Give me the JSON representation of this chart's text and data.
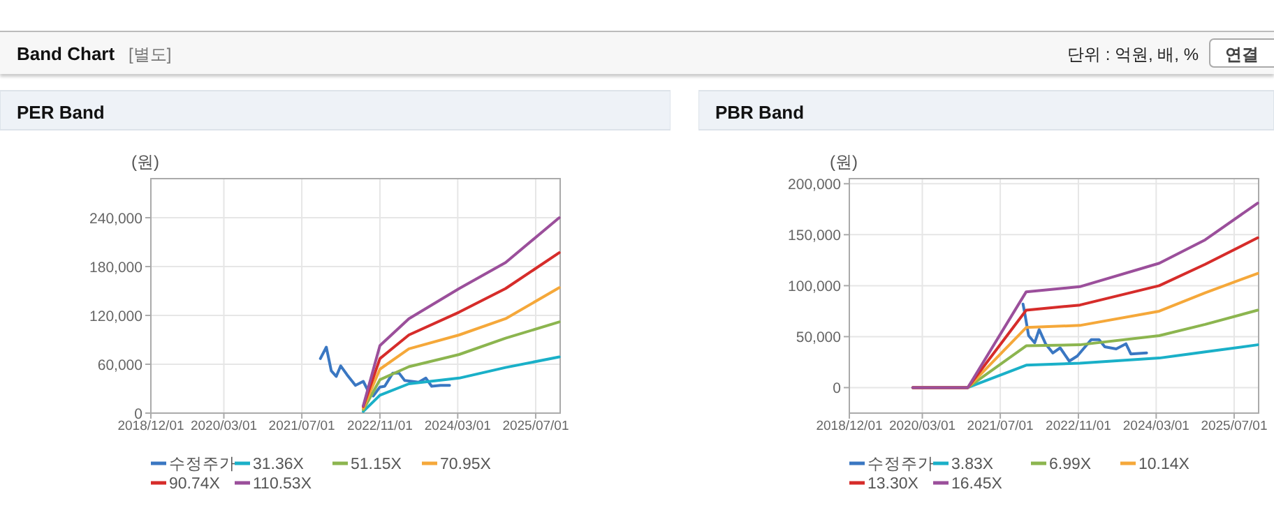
{
  "chart_data": [
    {
      "type": "line",
      "title": "PER Band",
      "ylabel": "(원)",
      "annotations": [
        "Band Chart",
        "[별도]",
        "단위 : 억원, 배, %",
        "연결"
      ],
      "xlim": [
        "2018-12-01",
        "2025-12-01"
      ],
      "xticks": [
        {
          "value": "2018-12-01",
          "label": "2018/12/01"
        },
        {
          "value": "2020-03-01",
          "label": "2020/03/01"
        },
        {
          "value": "2021-07-01",
          "label": "2021/07/01"
        },
        {
          "value": "2022-11-01",
          "label": "2022/11/01"
        },
        {
          "value": "2024-03-01",
          "label": "2024/03/01"
        },
        {
          "value": "2025-07-01",
          "label": "2025/07/01"
        }
      ],
      "ylim": [
        0,
        288000
      ],
      "yticks": [
        {
          "value": 0,
          "label": "0"
        },
        {
          "value": 60000,
          "label": "60,000"
        },
        {
          "value": 120000,
          "label": "120,000"
        },
        {
          "value": 180000,
          "label": "180,000"
        },
        {
          "value": 240000,
          "label": "240,000"
        }
      ],
      "grid": true,
      "legend": "bottom",
      "series": [
        {
          "name": "수정주가",
          "color": "#3a77c2",
          "x": [
            "2021-10-25",
            "2021-12-01",
            "2022-01-01",
            "2022-02-01",
            "2022-03-01",
            "2022-04-10",
            "2022-06-01",
            "2022-07-20",
            "2022-08-20",
            "2022-09-20",
            "2022-11-01",
            "2022-12-01",
            "2023-01-20",
            "2023-03-01",
            "2023-04-05",
            "2023-07-01",
            "2023-08-15",
            "2023-09-20",
            "2023-11-15",
            "2024-01-10"
          ],
          "values": [
            67000,
            81000,
            52000,
            45000,
            58000,
            47000,
            34000,
            39000,
            27000,
            21000,
            32000,
            33000,
            49000,
            49000,
            40000,
            38000,
            43000,
            33000,
            34000,
            34000
          ]
        },
        {
          "name": "31.36X",
          "color": "#1ab0c8",
          "x": [
            "2022-07-20",
            "2022-11-01",
            "2023-05-01",
            "2024-03-10",
            "2024-12-25",
            "2025-11-25"
          ],
          "values": [
            2000,
            22000,
            36000,
            43000,
            56000,
            69000
          ]
        },
        {
          "name": "51.15X",
          "color": "#8cb54f",
          "x": [
            "2022-07-20",
            "2022-11-01",
            "2023-05-01",
            "2024-03-10",
            "2024-12-25",
            "2025-11-25"
          ],
          "values": [
            4000,
            41000,
            57000,
            72000,
            92000,
            112000
          ]
        },
        {
          "name": "70.95X",
          "color": "#f5a83a",
          "x": [
            "2022-07-20",
            "2022-11-01",
            "2023-05-01",
            "2024-03-10",
            "2024-12-25",
            "2025-11-25"
          ],
          "values": [
            6000,
            54000,
            79000,
            96000,
            116000,
            154000
          ]
        },
        {
          "name": "90.74X",
          "color": "#d62c2a",
          "x": [
            "2022-07-20",
            "2022-11-01",
            "2023-05-01",
            "2024-03-10",
            "2024-12-25",
            "2025-11-25"
          ],
          "values": [
            8000,
            67000,
            96000,
            124000,
            153000,
            197000
          ]
        },
        {
          "name": "110.53X",
          "color": "#9b4f9b",
          "x": [
            "2022-07-20",
            "2022-11-01",
            "2023-05-01",
            "2024-03-10",
            "2024-12-25",
            "2025-11-25"
          ],
          "values": [
            9000,
            83000,
            116000,
            153000,
            185000,
            240000
          ]
        }
      ]
    },
    {
      "type": "line",
      "title": "PBR Band",
      "ylabel": "(원)",
      "xlim": [
        "2018-12-01",
        "2025-12-01"
      ],
      "xticks": [
        {
          "value": "2018-12-01",
          "label": "2018/12/01"
        },
        {
          "value": "2020-03-01",
          "label": "2020/03/01"
        },
        {
          "value": "2021-07-01",
          "label": "2021/07/01"
        },
        {
          "value": "2022-11-01",
          "label": "2022/11/01"
        },
        {
          "value": "2024-03-01",
          "label": "2024/03/01"
        },
        {
          "value": "2025-07-01",
          "label": "2025/07/01"
        }
      ],
      "ylim": [
        -25000,
        205000
      ],
      "yticks": [
        {
          "value": 0,
          "label": "0"
        },
        {
          "value": 50000,
          "label": "50,000"
        },
        {
          "value": 100000,
          "label": "100,000"
        },
        {
          "value": 150000,
          "label": "150,000"
        },
        {
          "value": 200000,
          "label": "200,000"
        }
      ],
      "grid": true,
      "legend": "bottom",
      "series": [
        {
          "name": "수정주가",
          "color": "#3a77c2",
          "x": [
            "2021-11-20",
            "2021-12-01",
            "2021-12-25",
            "2022-02-01",
            "2022-03-01",
            "2022-04-10",
            "2022-05-25",
            "2022-07-10",
            "2022-09-05",
            "2022-10-25",
            "2023-01-20",
            "2023-03-10",
            "2023-04-15",
            "2023-06-25",
            "2023-08-25",
            "2023-09-25",
            "2024-01-01"
          ],
          "values": [
            82000,
            73000,
            51000,
            44000,
            57000,
            43000,
            34000,
            39000,
            26000,
            31000,
            47000,
            47000,
            40000,
            38000,
            43000,
            33000,
            34000
          ]
        },
        {
          "name": "3.83X",
          "color": "#1ab0c8",
          "x": [
            "2020-01-01",
            "2020-12-10",
            "2021-12-10",
            "2022-11-10",
            "2024-03-20",
            "2025-01-01",
            "2025-11-25"
          ],
          "values": [
            0,
            0,
            22000,
            24000,
            29000,
            35000,
            42000
          ]
        },
        {
          "name": "6.99X",
          "color": "#8cb54f",
          "x": [
            "2020-01-01",
            "2020-12-10",
            "2021-12-10",
            "2022-11-10",
            "2024-03-20",
            "2025-01-01",
            "2025-11-25"
          ],
          "values": [
            0,
            0,
            41000,
            42000,
            51000,
            62000,
            76000
          ]
        },
        {
          "name": "10.14X",
          "color": "#f5a83a",
          "x": [
            "2020-01-01",
            "2020-12-10",
            "2021-12-10",
            "2022-11-10",
            "2024-03-20",
            "2025-01-01",
            "2025-11-25"
          ],
          "values": [
            0,
            0,
            59000,
            61000,
            75000,
            93000,
            112000
          ]
        },
        {
          "name": "13.30X",
          "color": "#d62c2a",
          "x": [
            "2020-01-01",
            "2020-12-10",
            "2021-12-10",
            "2022-11-10",
            "2024-03-20",
            "2025-01-01",
            "2025-11-25"
          ],
          "values": [
            0,
            0,
            76000,
            81000,
            100000,
            121000,
            147000
          ]
        },
        {
          "name": "16.45X",
          "color": "#9b4f9b",
          "x": [
            "2020-01-01",
            "2020-12-10",
            "2021-12-10",
            "2022-11-10",
            "2024-03-20",
            "2025-01-01",
            "2025-11-25"
          ],
          "values": [
            0,
            0,
            94000,
            99000,
            122000,
            145000,
            181000
          ]
        }
      ]
    }
  ]
}
